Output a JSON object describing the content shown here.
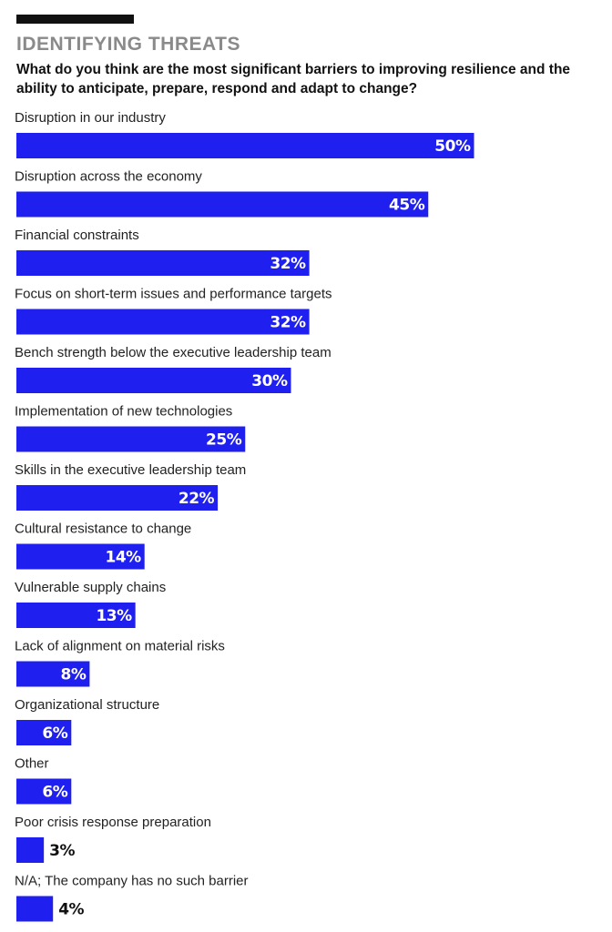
{
  "header": {
    "title": "IDENTIFYING THREATS",
    "question": "What do you think are the most significant barriers to improving resilience and the ability to anticipate, prepare, respond and adapt to change?"
  },
  "colors": {
    "bar": "#1f1ff0",
    "label_inside": "#ffffff",
    "label_outside": "#111111"
  },
  "chart_data": {
    "type": "bar",
    "orientation": "horizontal",
    "title": "IDENTIFYING THREATS",
    "xlabel": "",
    "ylabel": "",
    "xlim": [
      0,
      50
    ],
    "grid": false,
    "unit": "%",
    "categories": [
      "Disruption in our industry",
      "Disruption across the economy",
      "Financial constraints",
      "Focus on short-term issues and performance targets",
      "Bench strength below the executive leadership team",
      "Implementation of new technologies",
      "Skills in the executive leadership team",
      "Cultural resistance to change",
      "Vulnerable supply chains",
      "Lack of alignment on material risks",
      "Organizational structure",
      "Other",
      "Poor crisis response preparation",
      "N/A; The company has no such barrier"
    ],
    "values": [
      50,
      45,
      32,
      32,
      30,
      25,
      22,
      14,
      13,
      8,
      6,
      6,
      3,
      4
    ],
    "labels": [
      "50%",
      "45%",
      "32%",
      "32%",
      "30%",
      "25%",
      "22%",
      "14%",
      "13%",
      "8%",
      "6%",
      "6%",
      "3%",
      "4%"
    ]
  }
}
